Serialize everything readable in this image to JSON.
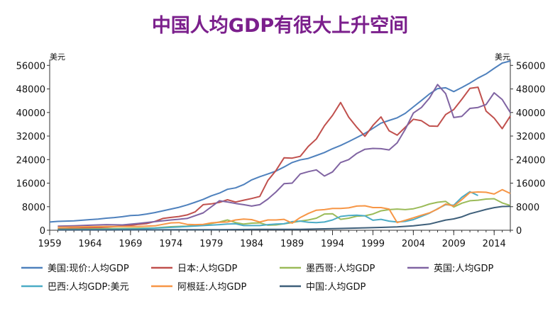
{
  "chart_data": {
    "type": "line",
    "title": "中国人均GDP有很大上升空间",
    "title_color": "#7b1f8c",
    "y_unit_left": "美元",
    "y_unit_right": "美元",
    "ylim": [
      0,
      58000
    ],
    "y_ticks": [
      0,
      8000,
      16000,
      24000,
      32000,
      40000,
      48000,
      56000
    ],
    "y_tick_labels": [
      "0",
      "8000",
      "16000",
      "24000",
      "32000",
      "40000",
      "48000",
      "56000"
    ],
    "xlim": [
      1959,
      2016
    ],
    "x_ticks": [
      1959,
      1964,
      1969,
      1974,
      1979,
      1984,
      1989,
      1994,
      1999,
      2004,
      2009,
      2014
    ],
    "x_tick_labels": [
      "1959",
      "1964",
      "1969",
      "1974",
      "1979",
      "1984",
      "1989",
      "1994",
      "1999",
      "2004",
      "2009",
      "2014"
    ],
    "grid": false,
    "legend_placement": "bottom",
    "series": [
      {
        "name": "美国:现价:人均GDP",
        "color": "#4f81bd",
        "x": [
          1959,
          1960,
          1961,
          1962,
          1963,
          1964,
          1965,
          1966,
          1967,
          1968,
          1969,
          1970,
          1971,
          1972,
          1973,
          1974,
          1975,
          1976,
          1977,
          1978,
          1979,
          1980,
          1981,
          1982,
          1983,
          1984,
          1985,
          1986,
          1987,
          1988,
          1989,
          1990,
          1991,
          1992,
          1993,
          1994,
          1995,
          1996,
          1997,
          1998,
          1999,
          2000,
          2001,
          2002,
          2003,
          2004,
          2005,
          2006,
          2007,
          2008,
          2009,
          2010,
          2011,
          2012,
          2013,
          2014,
          2015,
          2016
        ],
        "y": [
          2800,
          3000,
          3100,
          3200,
          3400,
          3600,
          3800,
          4100,
          4300,
          4600,
          5000,
          5100,
          5500,
          6000,
          6600,
          7200,
          7800,
          8600,
          9500,
          10500,
          11700,
          12600,
          13900,
          14400,
          15500,
          17100,
          18200,
          19100,
          20100,
          21500,
          23000,
          23900,
          24400,
          25400,
          26400,
          27700,
          28800,
          30100,
          31500,
          32900,
          34600,
          36400,
          37300,
          38200,
          39700,
          41900,
          44100,
          46300,
          48100,
          48400,
          47100,
          48500,
          50000,
          51700,
          53100,
          55000,
          56800,
          57500
        ]
      },
      {
        "name": "日本:人均GDP",
        "color": "#c0504d",
        "x": [
          1960,
          1961,
          1962,
          1963,
          1964,
          1965,
          1966,
          1967,
          1968,
          1969,
          1970,
          1971,
          1972,
          1973,
          1974,
          1975,
          1976,
          1977,
          1978,
          1979,
          1980,
          1981,
          1982,
          1983,
          1984,
          1985,
          1986,
          1987,
          1988,
          1989,
          1990,
          1991,
          1992,
          1993,
          1994,
          1995,
          1996,
          1997,
          1998,
          1999,
          2000,
          2001,
          2002,
          2003,
          2004,
          2005,
          2006,
          2007,
          2008,
          2009,
          2010,
          2011,
          2012,
          2013,
          2014,
          2015,
          2016
        ],
        "y": [
          500,
          560,
          630,
          720,
          840,
          920,
          1050,
          1230,
          1450,
          1670,
          2030,
          2270,
          2950,
          3990,
          4350,
          4660,
          5200,
          6230,
          8680,
          8950,
          9460,
          10360,
          9580,
          10210,
          10790,
          11470,
          16900,
          20300,
          24600,
          24500,
          25100,
          28500,
          31000,
          35500,
          39000,
          43400,
          38400,
          35000,
          31900,
          35600,
          38500,
          33800,
          32300,
          35000,
          37700,
          37200,
          35400,
          35300,
          39300,
          41000,
          44500,
          48200,
          48600,
          40500,
          38100,
          34500,
          38800
        ]
      },
      {
        "name": "墨西哥:人均GDP",
        "color": "#9bbb59",
        "x": [
          1960,
          1962,
          1964,
          1966,
          1968,
          1970,
          1972,
          1974,
          1976,
          1978,
          1980,
          1981,
          1982,
          1983,
          1984,
          1985,
          1986,
          1987,
          1988,
          1989,
          1990,
          1991,
          1992,
          1993,
          1994,
          1995,
          1996,
          1997,
          1998,
          1999,
          2000,
          2001,
          2002,
          2003,
          2004,
          2005,
          2006,
          2007,
          2008,
          2009,
          2010,
          2011,
          2012,
          2013,
          2014,
          2015,
          2016
        ],
        "y": [
          350,
          380,
          450,
          520,
          600,
          700,
          800,
          1200,
          1400,
          1800,
          2800,
          3500,
          2600,
          2100,
          2400,
          2500,
          1700,
          1800,
          2200,
          2600,
          3100,
          3500,
          4100,
          5500,
          5600,
          3700,
          4100,
          4800,
          4900,
          5500,
          6600,
          7000,
          7200,
          7000,
          7300,
          8000,
          8900,
          9500,
          9800,
          7900,
          9200,
          10000,
          10200,
          10600,
          10700,
          9300,
          8400
        ]
      },
      {
        "name": "英国:人均GDP",
        "color": "#8064a2",
        "x": [
          1960,
          1962,
          1964,
          1966,
          1968,
          1970,
          1972,
          1974,
          1976,
          1978,
          1980,
          1981,
          1982,
          1983,
          1984,
          1985,
          1986,
          1987,
          1988,
          1989,
          1990,
          1991,
          1992,
          1993,
          1994,
          1995,
          1996,
          1997,
          1998,
          1999,
          2000,
          2001,
          2002,
          2003,
          2004,
          2005,
          2006,
          2007,
          2008,
          2009,
          2010,
          2011,
          2012,
          2013,
          2014,
          2015,
          2016
        ],
        "y": [
          1400,
          1500,
          1700,
          1900,
          1800,
          2300,
          2900,
          3500,
          4000,
          5900,
          10000,
          9600,
          9100,
          8700,
          8200,
          8700,
          10600,
          13000,
          15800,
          16000,
          19100,
          19900,
          20500,
          18400,
          19800,
          23000,
          24000,
          26100,
          27500,
          27800,
          27700,
          27300,
          29700,
          34300,
          39800,
          41700,
          44900,
          49500,
          46400,
          38300,
          38700,
          41400,
          41700,
          42700,
          46700,
          44400,
          40000
        ]
      },
      {
        "name": "巴西:人均GDP:美元",
        "color": "#4bacc6",
        "x": [
          1960,
          1965,
          1970,
          1975,
          1978,
          1980,
          1981,
          1982,
          1983,
          1984,
          1985,
          1986,
          1987,
          1988,
          1989,
          1990,
          1991,
          1992,
          1993,
          1994,
          1995,
          1996,
          1997,
          1998,
          1999,
          2000,
          2001,
          2002,
          2003,
          2004,
          2005,
          2006,
          2007,
          2008,
          2009,
          2010,
          2011,
          2012
        ],
        "y": [
          200,
          260,
          450,
          1100,
          1600,
          1900,
          2100,
          2200,
          1600,
          1600,
          1600,
          1900,
          2100,
          2200,
          2900,
          3100,
          2700,
          2600,
          2800,
          3500,
          4700,
          5000,
          5100,
          4900,
          3400,
          3700,
          3100,
          2800,
          3000,
          3600,
          4700,
          5800,
          7300,
          8700,
          8500,
          11200,
          13100,
          11800
        ]
      },
      {
        "name": "阿根廷:人均GDP",
        "color": "#f79646",
        "x": [
          1960,
          1962,
          1964,
          1966,
          1968,
          1970,
          1972,
          1974,
          1975,
          1976,
          1977,
          1978,
          1979,
          1980,
          1981,
          1982,
          1983,
          1984,
          1985,
          1986,
          1987,
          1988,
          1989,
          1990,
          1991,
          1992,
          1993,
          1994,
          1995,
          1996,
          1997,
          1998,
          1999,
          2000,
          2001,
          2002,
          2003,
          2004,
          2005,
          2006,
          2007,
          2008,
          2009,
          2010,
          2011,
          2012,
          2013,
          2014,
          2015,
          2016
        ],
        "y": [
          1000,
          1100,
          1200,
          1300,
          1250,
          1300,
          1500,
          2500,
          2600,
          2000,
          1900,
          2000,
          2500,
          2700,
          2800,
          3500,
          3800,
          3600,
          2800,
          3500,
          3500,
          3700,
          2400,
          4300,
          5700,
          6800,
          7000,
          7400,
          7400,
          7600,
          8200,
          8300,
          7700,
          7700,
          7200,
          2600,
          3400,
          4200,
          5100,
          5900,
          7200,
          8900,
          8200,
          10400,
          12800,
          13000,
          12900,
          12300,
          13800,
          12500
        ]
      },
      {
        "name": "中国:人均GDP",
        "color": "#3e5f7a",
        "x": [
          1960,
          1965,
          1970,
          1975,
          1980,
          1985,
          1990,
          1995,
          1998,
          2000,
          2002,
          2004,
          2006,
          2008,
          2009,
          2010,
          2011,
          2012,
          2013,
          2014,
          2015,
          2016
        ],
        "y": [
          90,
          100,
          110,
          180,
          195,
          295,
          320,
          610,
          830,
          960,
          1150,
          1510,
          2100,
          3470,
          3840,
          4560,
          5610,
          6340,
          7080,
          7680,
          8070,
          8120
        ]
      }
    ]
  }
}
